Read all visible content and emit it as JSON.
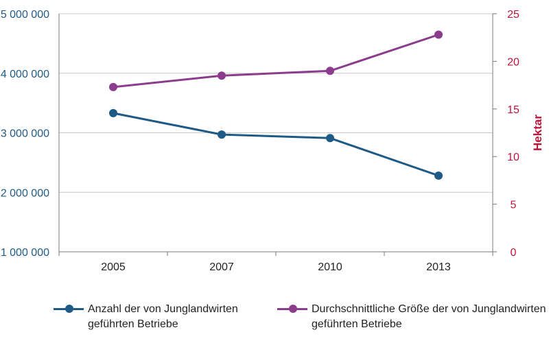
{
  "chart_data": {
    "type": "line",
    "categories": [
      "2005",
      "2007",
      "2010",
      "2013"
    ],
    "series": [
      {
        "name": "Anzahl der von Junglandwirten geführten Betriebe",
        "axis": "left",
        "color": "#1e5a86",
        "values": [
          3330000,
          2970000,
          2910000,
          2280000
        ]
      },
      {
        "name": "Durchschnittliche Größe der von Junglandwirten geführten Betriebe",
        "axis": "right",
        "color": "#8c3c8c",
        "values": [
          17.3,
          18.5,
          19.0,
          22.8
        ]
      }
    ],
    "y_left": {
      "ylim": [
        1000000,
        5000000
      ],
      "ticks": [
        "5 000 000",
        "4 000 000",
        "3 000 000",
        "2 000 000",
        "1 000 000"
      ],
      "tick_values": [
        5000000,
        4000000,
        3000000,
        2000000,
        1000000
      ],
      "color": "#1e5a86"
    },
    "y_right": {
      "label": "Hektar",
      "ylim": [
        0,
        25
      ],
      "ticks": [
        "25",
        "20",
        "15",
        "10",
        "5",
        "0"
      ],
      "tick_values": [
        25,
        20,
        15,
        10,
        5,
        0
      ],
      "color": "#c0143c"
    },
    "grid": "horizontal",
    "legend_position": "bottom"
  }
}
